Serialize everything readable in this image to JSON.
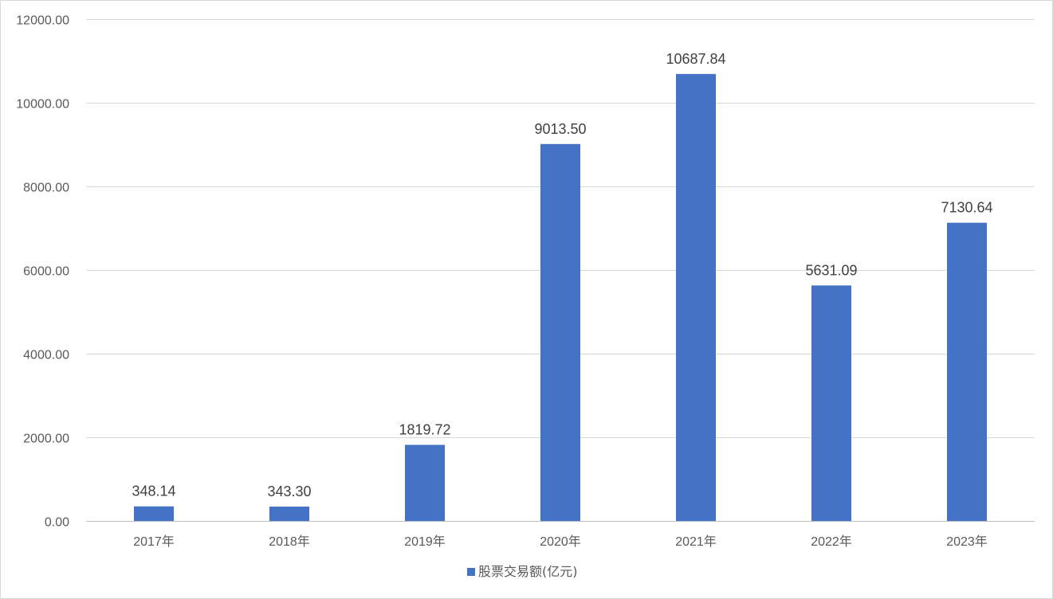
{
  "chart_data": {
    "type": "bar",
    "categories": [
      "2017年",
      "2018年",
      "2019年",
      "2020年",
      "2021年",
      "2022年",
      "2023年"
    ],
    "series": [
      {
        "name": "股票交易额(亿元)",
        "values": [
          348.14,
          343.3,
          1819.72,
          9013.5,
          10687.84,
          5631.09,
          7130.64
        ],
        "data_labels": [
          "348.14",
          "343.30",
          "1819.72",
          "9013.50",
          "10687.84",
          "5631.09",
          "7130.64"
        ],
        "color": "#4472c4"
      }
    ],
    "title": "",
    "xlabel": "",
    "ylabel": "",
    "ylim": [
      0,
      12000
    ],
    "yticks": [
      0,
      2000,
      4000,
      6000,
      8000,
      10000,
      12000
    ],
    "ytick_labels": [
      "0.00",
      "2000.00",
      "4000.00",
      "6000.00",
      "8000.00",
      "10000.00",
      "12000.00"
    ],
    "grid": true,
    "grid_color": "#d9d9d9",
    "legend": "bottom-center",
    "legend_label": "股票交易额(亿元)"
  }
}
